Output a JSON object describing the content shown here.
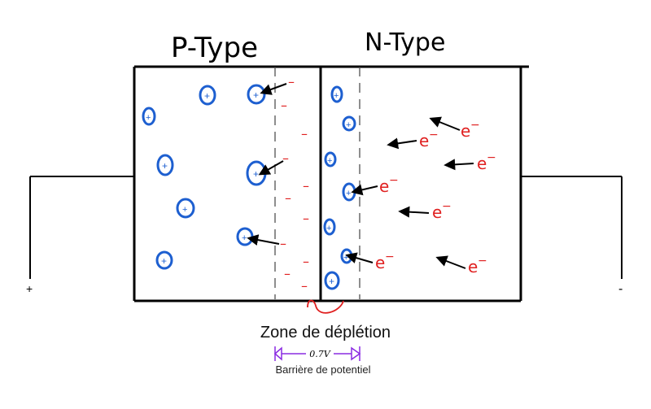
{
  "labels": {
    "p_type": "P-Type",
    "n_type": "N-Type",
    "plus_terminal": "+",
    "minus_terminal": "-",
    "depletion_zone": "Zone de déplétion",
    "voltage": "0.7V",
    "barrier": "Barrière de potentiel"
  },
  "symbols": {
    "hole": "+",
    "negative_ion": "–",
    "electron": "e",
    "electron_charge": "−"
  },
  "colors": {
    "outline": "#000000",
    "hole": "#1d5fd0",
    "electron": "#e02020",
    "depletion_marker": "#e02020",
    "barrier": "#8a2be2"
  }
}
